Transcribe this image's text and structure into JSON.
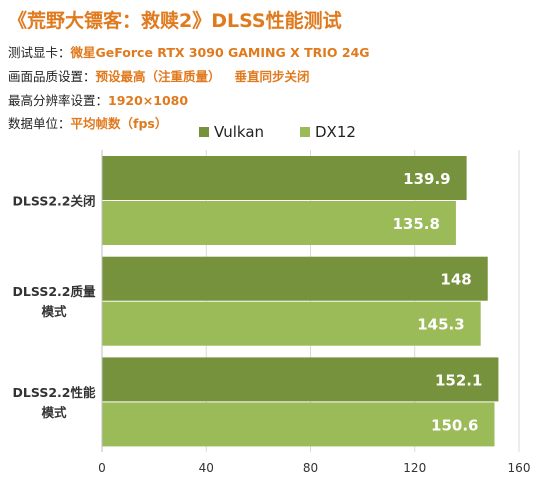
{
  "title": "《荒野大镖客：救赎2》DLSS性能测试",
  "info": {
    "gpu_label": "测试显卡：",
    "gpu_value": "微星GeForce RTX 3090 GAMING X TRIO 24G",
    "quality_label": "画面品质设置：",
    "quality_value": "预设最高（注重质量）",
    "quality_value2": "垂直同步关闭",
    "resolution_label": "最高分辨率设置：",
    "resolution_value": "1920×1080",
    "unit_label": "数据单位：",
    "unit_value": "平均帧数（fps）"
  },
  "colors": {
    "title": "#e07a1e",
    "vulkan": "#76923c",
    "dx12": "#9bbb59"
  },
  "chart_data": {
    "type": "bar",
    "orientation": "horizontal",
    "categories": [
      [
        "DLSS2.2关闭"
      ],
      [
        "DLSS2.2质量",
        "模式"
      ],
      [
        "DLSS2.2性能",
        "模式"
      ]
    ],
    "series": [
      {
        "name": "Vulkan",
        "values": [
          139.9,
          148,
          152.1
        ],
        "color": "#76923c"
      },
      {
        "name": "DX12",
        "values": [
          135.8,
          145.3,
          150.6
        ],
        "color": "#9bbb59"
      }
    ],
    "xlim": [
      0,
      160
    ],
    "xticks": [
      "0",
      "40",
      "80",
      "120",
      "160"
    ],
    "grid": "vertical",
    "legend": "top-center"
  }
}
